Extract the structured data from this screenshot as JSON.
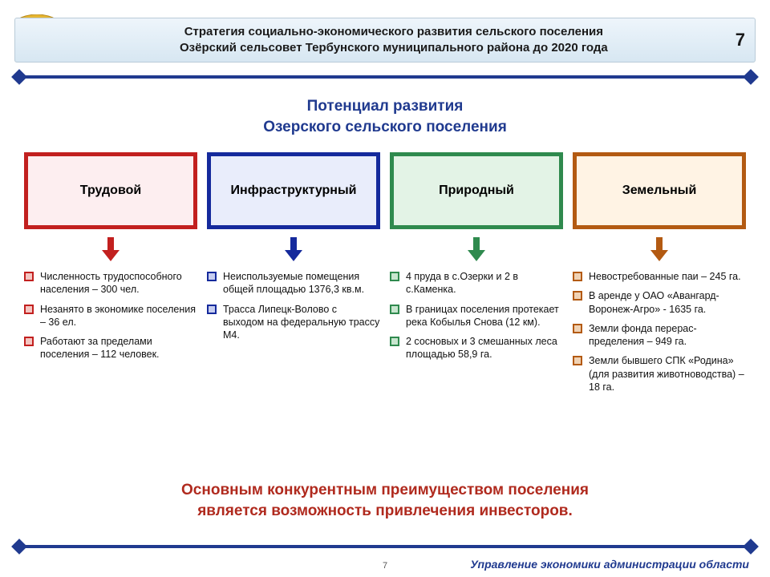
{
  "header": {
    "title_line1": "Стратегия социально-экономического развития сельского поселения",
    "title_line2": "Озёрский сельсовет Тербунского муниципального района до 2020 года",
    "page_number": "7"
  },
  "rule_color": "#203a8f",
  "section_title_line1": "Потенциал развития",
  "section_title_line2": "Озерского сельского поселения",
  "columns": [
    {
      "label": "Трудовой",
      "border_color": "#c2201f",
      "fill_color": "#fdeef0",
      "arrow_color": "#c2201f",
      "bullet_border": "#c2201f",
      "bullet_fill": "#f4c6c2",
      "items": [
        "Численность трудо­способного населе­ния – 300 чел.",
        "Незанято в экономике поселения – 36 ел.",
        "Работают за предела­ми поселения – 112 человек."
      ]
    },
    {
      "label": "Инфраструк­турный",
      "border_color": "#152a9c",
      "fill_color": "#e9edfb",
      "arrow_color": "#152a9c",
      "bullet_border": "#152a9c",
      "bullet_fill": "#c6cdf0",
      "items": [
        "Неиспользуемые помещения общей площадью 1376,3 кв.м.",
        "Трасса Липецк-Волово с выходом на федеральную трассу М4."
      ]
    },
    {
      "label": "Природный",
      "border_color": "#2f8a4e",
      "fill_color": "#e3f3e6",
      "arrow_color": "#2f8a4e",
      "bullet_border": "#2f8a4e",
      "bullet_fill": "#c8e6cf",
      "items": [
        "4 пруда в с.Озерки и 2 в с.Каменка.",
        "В границах поселения протекает река Кобылья Снова (12 км).",
        "2 сосновых и 3 смешан­ных леса площадью 58,9 га."
      ]
    },
    {
      "label": "Земельный",
      "border_color": "#b35a12",
      "fill_color": "#fff3e4",
      "arrow_color": "#b35a12",
      "bullet_border": "#b35a12",
      "bullet_fill": "#f0d2b4",
      "items": [
        "Невостребованные паи – 245 га.",
        "В аренде у ОАО «Авангард-Воронеж-Агро» - 1635 га.",
        "Земли фонда перерас­пределения – 949 га.",
        "Земли бывшего СПК «Родина» (для развития животноводства) – 18 га."
      ]
    }
  ],
  "conclusion_line1": "Основным конкурентным преимуществом поселения",
  "conclusion_line2": "является возможность привлечения инвесторов.",
  "footer_text": "Управление экономики администрации области",
  "small_pagenum": "7",
  "coat_colors": {
    "shield": "#c53028",
    "tree": "#e6b633",
    "ribbon": "#2e6bb0"
  }
}
